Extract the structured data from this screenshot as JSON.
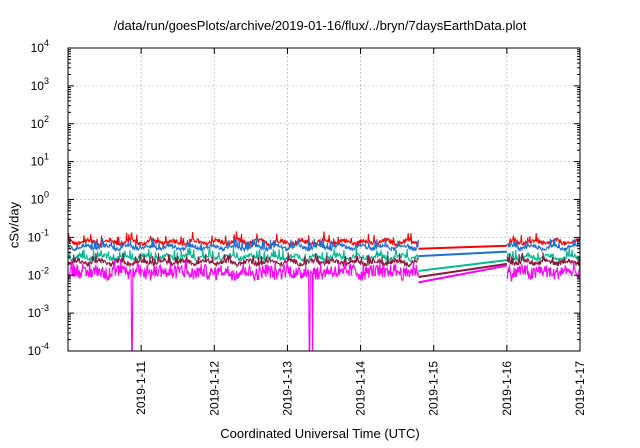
{
  "chart_data": {
    "type": "line",
    "title": "/data/run/goesPlots/archive/2019-01-16/flux/../bryn/7daysEarthData.plot",
    "xlabel": "Coordinated Universal Time (UTC)",
    "ylabel": "cSv/day",
    "x_ticks": [
      "2019-1-11",
      "2019-1-12",
      "2019-1-13",
      "2019-1-14",
      "2019-1-15",
      "2019-1-16",
      "2019-1-17"
    ],
    "x_range": [
      "2019-01-10",
      "2019-01-17"
    ],
    "y_scale": "log",
    "ylim": [
      0.0001,
      10000
    ],
    "y_ticks": [
      {
        "base": "10",
        "exp": "-4"
      },
      {
        "base": "10",
        "exp": "-3"
      },
      {
        "base": "10",
        "exp": "-2"
      },
      {
        "base": "10",
        "exp": "-1"
      },
      {
        "base": "10",
        "exp": "0"
      },
      {
        "base": "10",
        "exp": "1"
      },
      {
        "base": "10",
        "exp": "2"
      },
      {
        "base": "10",
        "exp": "3"
      },
      {
        "base": "10",
        "exp": "4"
      }
    ],
    "grid": true,
    "data_gap": [
      "2019-01-14 19:00",
      "2019-01-16 00:00"
    ],
    "series": [
      {
        "color": "#ff0000",
        "typical": 0.075,
        "spread": 0.06,
        "gap_start": 0.05,
        "gap_end": 0.06
      },
      {
        "color": "#1e6fd6",
        "typical": 0.055,
        "spread": 0.05,
        "gap_start": 0.032,
        "gap_end": 0.042
      },
      {
        "color": "#00b890",
        "typical": 0.03,
        "spread": 0.06,
        "gap_start": 0.013,
        "gap_end": 0.025
      },
      {
        "color": "#8b1a3a",
        "typical": 0.022,
        "spread": 0.06,
        "gap_start": 0.009,
        "gap_end": 0.02
      },
      {
        "color": "#ff00ff",
        "typical": 0.012,
        "spread": 0.18,
        "gap_start": 0.0065,
        "gap_end": 0.018,
        "dropouts": [
          "2019-01-10 21:00",
          "2019-01-13 07:15",
          "2019-01-13 08:15"
        ]
      }
    ]
  }
}
